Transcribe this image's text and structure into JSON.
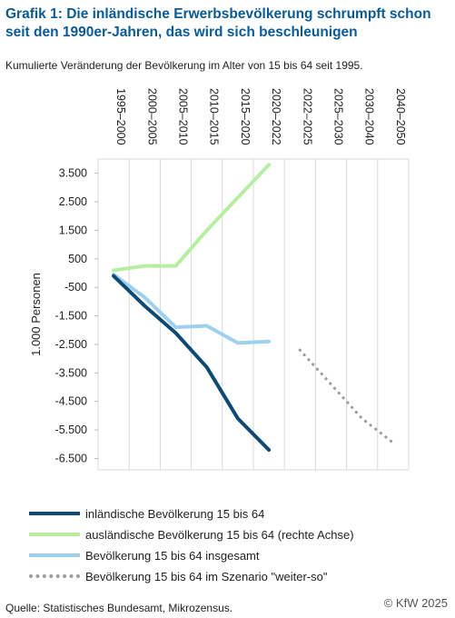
{
  "header": {
    "title": "Grafik 1: Die inländische Erwerbsbevölkerung schrumpft schon seit den 1990er-Jahren, das wird sich beschleunigen",
    "subtitle": "Kumulierte Veränderung der Bevölkerung im Alter von 15 bis 64 seit 1995."
  },
  "footer": {
    "source": "Quelle: Statistisches Bundesamt, Mikrozensus.",
    "copyright": "© KfW 2025"
  },
  "chart_data": {
    "type": "line",
    "categories": [
      "1995–2000",
      "2000–2005",
      "2005–2010",
      "2010–2015",
      "2015–2020",
      "2020–2022",
      "2022–2025",
      "2025–2030",
      "2030–2040",
      "2040–2050"
    ],
    "ylabel": "1.000 Personen",
    "ylim": [
      -6500,
      4000
    ],
    "yticks": [
      3500,
      2500,
      1500,
      500,
      -500,
      -1500,
      -2500,
      -3500,
      -4500,
      -5500,
      -6500
    ],
    "ytick_labels": [
      "3.500",
      "2.500",
      "1.500",
      "500",
      "-500",
      "-1.500",
      "-2.500",
      "-3.500",
      "-4.500",
      "-5.500",
      "-6.500"
    ],
    "grid": false,
    "legend_position": "bottom",
    "series": [
      {
        "name": "inländische Bevölkerung 15 bis 64",
        "color": "#0d4a73",
        "style": "solid",
        "x": [
          0,
          1,
          2,
          3,
          4,
          5
        ],
        "values": [
          -100,
          -1150,
          -2100,
          -3300,
          -5100,
          -6200
        ]
      },
      {
        "name": "ausländische Bevölkerung 15 bis 64 (rechte Achse)",
        "color": "#b8eea4",
        "style": "solid",
        "x": [
          0,
          1,
          2,
          3,
          4,
          5
        ],
        "values": [
          100,
          250,
          250,
          1500,
          2650,
          3800
        ]
      },
      {
        "name": "Bevölkerung 15 bis 64 insgesamt",
        "color": "#9fd1ec",
        "style": "solid",
        "x": [
          0,
          1,
          2,
          3,
          4,
          5
        ],
        "values": [
          -50,
          -850,
          -1900,
          -1850,
          -2450,
          -2400
        ]
      },
      {
        "name": "Bevölkerung 15 bis 64 im Szenario \"weiter-so\"",
        "color": "#9e9e9e",
        "style": "dotted",
        "x": [
          6,
          7,
          8,
          9
        ],
        "values": [
          -2700,
          -3900,
          -5100,
          -5950
        ]
      }
    ]
  }
}
